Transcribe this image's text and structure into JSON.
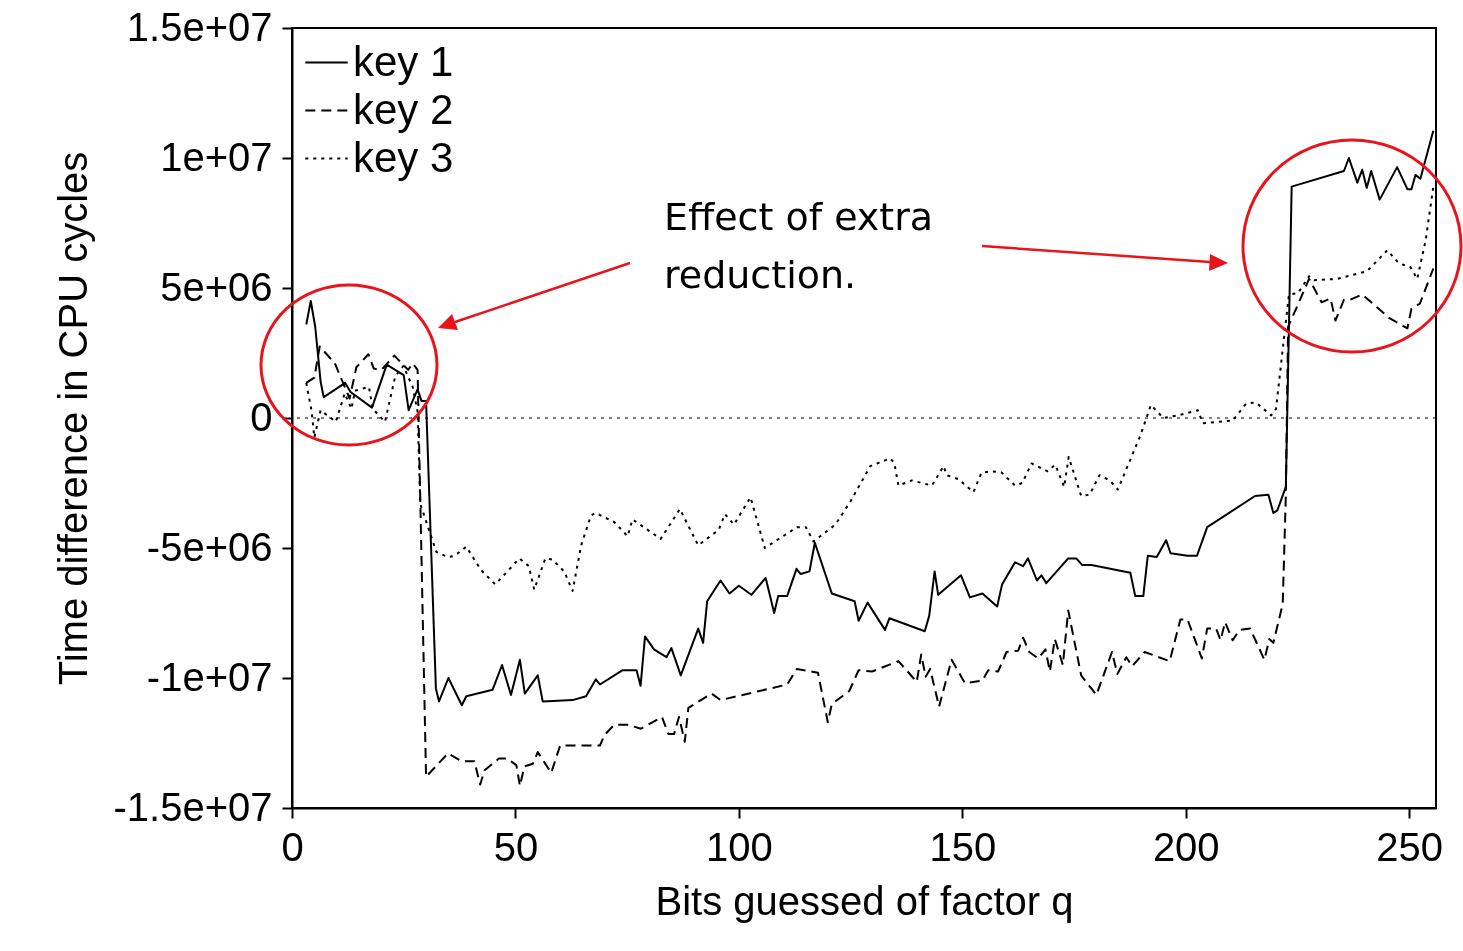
{
  "chart_data": {
    "type": "line",
    "xlabel": "Bits guessed of factor q",
    "ylabel": "Time difference in CPU cycles",
    "xlim": [
      0,
      256
    ],
    "xticks": [
      0,
      50,
      100,
      150,
      200,
      250
    ],
    "ylim": [
      -15000000,
      15000000
    ],
    "yticks": [
      {
        "value": -15000000,
        "label": "-1.5e+07"
      },
      {
        "value": -10000000,
        "label": "-1e+07"
      },
      {
        "value": -5000000,
        "label": "-5e+06"
      },
      {
        "value": 0,
        "label": "0"
      },
      {
        "value": 5000000,
        "label": "5e+06"
      },
      {
        "value": 10000000,
        "label": "1e+07"
      },
      {
        "value": 15000000,
        "label": "1.5e+07"
      }
    ],
    "grid": false,
    "legend": "top left",
    "ref_lines": [
      {
        "axis": "y",
        "value": 0,
        "color": "#000000",
        "line_style": "dotted"
      }
    ],
    "annotations": [
      "Effect of extra reduction."
    ],
    "series": [
      {
        "name": "key 1",
        "color": "#000000",
        "line_style": "solid",
        "x": [
          3.2,
          4.2,
          5.2,
          6.4,
          7.1,
          11.9,
          13.1,
          17.9,
          21.2,
          25,
          26.1,
          28.1,
          29,
          30,
          32.2,
          32.9,
          35,
          38,
          39,
          44.9,
          47,
          49,
          51,
          52.1,
          55,
          56.1,
          62.8,
          65.8,
          68,
          68.9,
          74,
          77.1,
          78,
          79,
          81,
          83.8,
          84.9,
          87,
          90.9,
          92,
          92.9,
          95.9,
          97.9,
          100,
          102.8,
          106,
          107.9,
          108.8,
          110.8,
          112.9,
          113.8,
          115.8,
          117,
          120.8,
          125.9,
          126.8,
          128.8,
          132.7,
          133.7,
          141.6,
          142.6,
          143.8,
          144.6,
          149.7,
          151.7,
          154.5,
          157.8,
          158.9,
          161.8,
          163.6,
          164.7,
          166.7,
          167.7,
          168.8,
          173.7,
          175.5,
          176.8,
          178.9,
          187.6,
          188.7,
          190.5,
          191.5,
          193.5,
          195.6,
          196.6,
          200.4,
          202.5,
          204.8,
          215.5,
          218.5,
          219.6,
          220.5,
          222.4,
          223.7,
          235.4,
          236.5,
          238.4,
          239.5,
          240.5,
          241.5,
          243.4,
          247.3,
          249.6,
          250.5,
          251.4,
          252.5,
          255.4
        ],
        "values": [
          3600000,
          4500000,
          3500000,
          1400000,
          800000,
          1350000,
          1000000,
          400000,
          2050000,
          1650000,
          300000,
          1100000,
          650000,
          650000,
          -10400000,
          -10900000,
          -10000000,
          -11050000,
          -10700000,
          -10450000,
          -9500000,
          -10650000,
          -9300000,
          -10600000,
          -9900000,
          -10900000,
          -10850000,
          -10700000,
          -10050000,
          -10250000,
          -9700000,
          -9700000,
          -10300000,
          -8400000,
          -8900000,
          -9200000,
          -8850000,
          -9900000,
          -8100000,
          -8650000,
          -7050000,
          -6250000,
          -6750000,
          -6450000,
          -6800000,
          -6150000,
          -7500000,
          -6850000,
          -6850000,
          -5800000,
          -6000000,
          -5900000,
          -4800000,
          -6750000,
          -7050000,
          -7800000,
          -7100000,
          -8150000,
          -7700000,
          -8200000,
          -7600000,
          -5900000,
          -6800000,
          -6050000,
          -6900000,
          -6750000,
          -7250000,
          -6400000,
          -5550000,
          -5700000,
          -5400000,
          -6250000,
          -6050000,
          -6350000,
          -5400000,
          -5400000,
          -5650000,
          -5650000,
          -5950000,
          -6850000,
          -6850000,
          -5300000,
          -5350000,
          -4700000,
          -5200000,
          -5300000,
          -5300000,
          -4200000,
          -3000000,
          -2950000,
          -3650000,
          -3550000,
          -2650000,
          8900000,
          9500000,
          10000000,
          9050000,
          9550000,
          8850000,
          9500000,
          8400000,
          9650000,
          8800000,
          8800000,
          9350000,
          9200000,
          11050000
        ]
      },
      {
        "name": "key 2",
        "color": "#000000",
        "line_style": "dashed",
        "x": [
          3.2,
          5,
          6.2,
          9.6,
          10.8,
          12.9,
          14.4,
          17.1,
          18.3,
          20,
          22.9,
          26,
          27,
          28.1,
          30,
          34.9,
          37.9,
          40.8,
          42.1,
          43.1,
          46.3,
          48.1,
          50.2,
          51,
          52,
          53.9,
          55,
          58,
          60,
          68.9,
          69.9,
          72.1,
          75.1,
          78.1,
          82.8,
          84.2,
          85.5,
          86.6,
          87.9,
          88.7,
          93.9,
          95.9,
          110.8,
          113,
          117.7,
          119.9,
          120.8,
          124.7,
          126.8,
          129.8,
          135.7,
          139.8,
          140.8,
          141.8,
          142.8,
          144.8,
          147.6,
          150.6,
          154.5,
          155.8,
          158,
          159.9,
          162.5,
          163.6,
          165,
          167,
          168.6,
          169.6,
          170.7,
          172.5,
          173.7,
          176.6,
          180,
          183.5,
          184.7,
          186.7,
          188,
          190.8,
          196.4,
          198.8,
          200.4,
          203.6,
          204.8,
          206.8,
          207.8,
          208.8,
          210.5,
          212,
          214.4,
          217.6,
          218.7,
          219.6,
          221.7,
          222.4,
          222.9,
          227.6,
          230.4,
          232.4,
          233.5,
          235.4,
          236.8,
          239.5,
          245.5,
          249.6,
          250.5,
          252.4,
          255.4
        ],
        "values": [
          1350000,
          1550000,
          2750000,
          2100000,
          1600000,
          750000,
          1950000,
          2450000,
          1900000,
          1850000,
          2400000,
          1850000,
          2100000,
          1850000,
          -13800000,
          -12900000,
          -13200000,
          -13200000,
          -14100000,
          -13550000,
          -13100000,
          -13100000,
          -13350000,
          -14150000,
          -13400000,
          -13300000,
          -12850000,
          -13650000,
          -12600000,
          -12600000,
          -12200000,
          -11800000,
          -11800000,
          -11950000,
          -11500000,
          -12150000,
          -12150000,
          -11500000,
          -12450000,
          -11150000,
          -10600000,
          -10850000,
          -10250000,
          -9650000,
          -9800000,
          -11700000,
          -11000000,
          -10500000,
          -9700000,
          -9750000,
          -9350000,
          -10150000,
          -9100000,
          -9950000,
          -9650000,
          -11100000,
          -9300000,
          -10200000,
          -10100000,
          -9700000,
          -9750000,
          -9000000,
          -8950000,
          -8450000,
          -9000000,
          -9250000,
          -8900000,
          -9750000,
          -8500000,
          -9500000,
          -7400000,
          -9900000,
          -10650000,
          -9000000,
          -9850000,
          -9200000,
          -9550000,
          -9000000,
          -9350000,
          -7750000,
          -7750000,
          -9250000,
          -8100000,
          -8100000,
          -8550000,
          -7850000,
          -8550000,
          -8150000,
          -8100000,
          -9300000,
          -8500000,
          -8650000,
          -7150000,
          -2950000,
          3500000,
          5350000,
          4450000,
          4600000,
          3750000,
          4550000,
          4550000,
          4750000,
          3850000,
          3450000,
          4200000,
          4400000,
          5750000
        ]
      },
      {
        "name": "key 3",
        "color": "#000000",
        "line_style": "dotted",
        "x": [
          3.2,
          4.4,
          5,
          6.4,
          9.8,
          11.8,
          13.3,
          14.1,
          17.2,
          18.1,
          20.8,
          23.1,
          24.9,
          27,
          28.1,
          28.7,
          32.3,
          34.9,
          36.4,
          39,
          42.3,
          45.5,
          50.9,
          53,
          54.2,
          56.7,
          58.3,
          60.9,
          62.8,
          64.7,
          66.9,
          67.9,
          72.1,
          75.1,
          76.2,
          82.5,
          86.8,
          90.9,
          95.5,
          96.9,
          98.9,
          102.6,
          105.8,
          113,
          115,
          116.7,
          121.6,
          125,
          129.4,
          133.9,
          134.8,
          135.7,
          138.7,
          143.2,
          145.8,
          146.5,
          149.1,
          152.5,
          154.3,
          156.6,
          158.8,
          161.8,
          163.4,
          165.5,
          169.1,
          170.8,
          172.8,
          173.8,
          176.6,
          178.5,
          180.7,
          183,
          184.8,
          189.9,
          192.2,
          195,
          198.2,
          202.7,
          203.8,
          210.5,
          213.5,
          215.7,
          219.1,
          220.2,
          222,
          223.1,
          225.1,
          227.6,
          228.7,
          233.9,
          240.6,
          245.1,
          247.7,
          250.3,
          251.8,
          253.7,
          255.4
        ],
        "values": [
          1350000,
          250000,
          -750000,
          300000,
          -150000,
          950000,
          350000,
          1050000,
          1200000,
          350000,
          -150000,
          1600000,
          2000000,
          1200000,
          250000,
          -3300000,
          -5150000,
          -5350000,
          -5300000,
          -4950000,
          -5850000,
          -6400000,
          -5400000,
          -5700000,
          -6600000,
          -5400000,
          -5450000,
          -5900000,
          -6650000,
          -4900000,
          -3750000,
          -3650000,
          -4000000,
          -4550000,
          -3900000,
          -4650000,
          -3500000,
          -4900000,
          -4300000,
          -3700000,
          -4100000,
          -3050000,
          -5000000,
          -4200000,
          -4200000,
          -4750000,
          -4100000,
          -3200000,
          -1850000,
          -1550000,
          -1750000,
          -2600000,
          -2400000,
          -2600000,
          -1850000,
          -2200000,
          -2350000,
          -2850000,
          -2100000,
          -2050000,
          -2100000,
          -2600000,
          -2500000,
          -1750000,
          -2050000,
          -1800000,
          -2650000,
          -1500000,
          -3000000,
          -2950000,
          -2200000,
          -2400000,
          -2750000,
          -650000,
          500000,
          0,
          100000,
          300000,
          -200000,
          -100000,
          550000,
          600000,
          100000,
          350000,
          3100000,
          4750000,
          4800000,
          5450000,
          5300000,
          5350000,
          5650000,
          6450000,
          5950000,
          5800000,
          5350000,
          6850000,
          8900000
        ]
      }
    ]
  }
}
